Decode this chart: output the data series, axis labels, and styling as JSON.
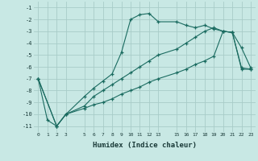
{
  "xlabel": "Humidex (Indice chaleur)",
  "background_color": "#c8e8e4",
  "grid_color": "#a8ccc8",
  "line_color": "#1a6b60",
  "line1_x": [
    0,
    1,
    2,
    3,
    5,
    6,
    7,
    8,
    9,
    10,
    11,
    12,
    13,
    15,
    16,
    17,
    18,
    19,
    20,
    21,
    22,
    23
  ],
  "line1_y": [
    -7.0,
    -10.5,
    -11.0,
    -10.0,
    -8.5,
    -7.8,
    -7.2,
    -6.6,
    -4.8,
    -2.0,
    -1.6,
    -1.5,
    -2.2,
    -2.2,
    -2.5,
    -2.7,
    -2.5,
    -2.8,
    -3.0,
    -3.1,
    -4.4,
    -6.1
  ],
  "line2_x": [
    0,
    2,
    3,
    5,
    6,
    7,
    8,
    9,
    10,
    11,
    12,
    13,
    15,
    16,
    17,
    18,
    19,
    20,
    21,
    22,
    23
  ],
  "line2_y": [
    -7.0,
    -11.0,
    -10.0,
    -9.3,
    -8.5,
    -8.0,
    -7.5,
    -7.0,
    -6.5,
    -6.0,
    -5.5,
    -5.0,
    -4.5,
    -4.0,
    -3.5,
    -3.0,
    -2.7,
    -3.0,
    -3.1,
    -6.1,
    -6.2
  ],
  "line3_x": [
    0,
    2,
    3,
    5,
    6,
    7,
    8,
    9,
    10,
    11,
    12,
    13,
    15,
    16,
    17,
    18,
    19,
    20,
    21,
    22,
    23
  ],
  "line3_y": [
    -7.0,
    -11.0,
    -10.0,
    -9.5,
    -9.2,
    -9.0,
    -8.7,
    -8.3,
    -8.0,
    -7.7,
    -7.3,
    -7.0,
    -6.5,
    -6.2,
    -5.8,
    -5.5,
    -5.1,
    -3.0,
    -3.1,
    -6.2,
    -6.2
  ],
  "ylim_min": -11.5,
  "ylim_max": -0.5,
  "xlim_min": -0.5,
  "xlim_max": 23.5,
  "yticks": [
    -1,
    -2,
    -3,
    -4,
    -5,
    -6,
    -7,
    -8,
    -9,
    -10,
    -11
  ],
  "xticks": [
    0,
    1,
    2,
    3,
    5,
    6,
    7,
    8,
    9,
    10,
    11,
    12,
    13,
    15,
    16,
    17,
    18,
    19,
    20,
    21,
    22,
    23
  ]
}
